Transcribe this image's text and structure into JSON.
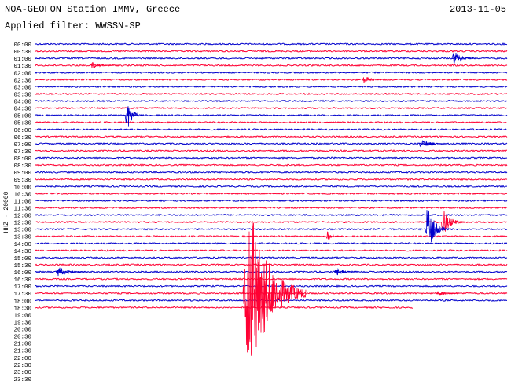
{
  "chart_data": {
    "type": "helicorder",
    "title": "NOA-GEOFON Station IMMV, Greece",
    "date": "2013-11-05",
    "subtitle": "Applied filter: WWSSN-SP",
    "ylabel": "HHZ - 20000",
    "rows": [
      "00:00",
      "00:30",
      "01:00",
      "01:30",
      "02:00",
      "02:30",
      "03:00",
      "03:30",
      "04:00",
      "04:30",
      "05:00",
      "05:30",
      "06:00",
      "06:30",
      "07:00",
      "07:30",
      "08:00",
      "08:30",
      "09:00",
      "09:30",
      "10:00",
      "10:30",
      "11:00",
      "11:30",
      "12:00",
      "12:30",
      "13:00",
      "13:30",
      "14:00",
      "14:30",
      "15:00",
      "15:30",
      "16:00",
      "16:30",
      "17:00",
      "17:30",
      "18:00",
      "18:30",
      "19:00",
      "19:30",
      "20:00",
      "20:30",
      "21:00",
      "21:30",
      "22:00",
      "22:30",
      "23:00",
      "23:30"
    ],
    "colors": [
      "#0000cc",
      "#ff0033"
    ],
    "xlim": [
      0,
      30
    ],
    "data_end": {
      "row": 37,
      "minute": 24
    },
    "events": [
      {
        "row": 2,
        "minute": 26.5,
        "amplitude": 1.1,
        "duration": 1.5
      },
      {
        "row": 3,
        "minute": 3.5,
        "amplitude": 0.5,
        "duration": 1.5
      },
      {
        "row": 5,
        "minute": 20.8,
        "amplitude": 0.7,
        "duration": 1.2
      },
      {
        "row": 10,
        "minute": 5.7,
        "amplitude": 2.4,
        "duration": 1.2
      },
      {
        "row": 14,
        "minute": 24.4,
        "amplitude": 0.9,
        "duration": 1.5
      },
      {
        "row": 25,
        "minute": 25.8,
        "amplitude": 2,
        "duration": 1.5
      },
      {
        "row": 26,
        "minute": 24.8,
        "amplitude": 3.6,
        "duration": 1.5
      },
      {
        "row": 27,
        "minute": 18.5,
        "amplitude": 0.7,
        "duration": 1
      },
      {
        "row": 32,
        "minute": 1.3,
        "amplitude": 0.8,
        "duration": 2
      },
      {
        "row": 32,
        "minute": 19,
        "amplitude": 0.6,
        "duration": 1.5
      },
      {
        "row": 35,
        "minute": 13.2,
        "amplitude": 14,
        "duration": 4
      },
      {
        "row": 35,
        "minute": 25.5,
        "amplitude": 0.4,
        "duration": 1.5
      }
    ]
  }
}
